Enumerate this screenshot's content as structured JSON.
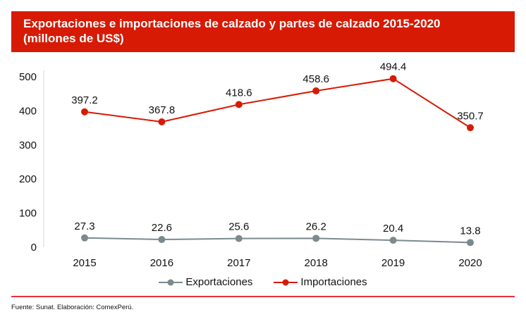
{
  "title_line1": "Exportaciones e importaciones de calzado y partes de calzado 2015-2020",
  "title_line2": "(millones de US$)",
  "source": "Fuente: Sunat. Elaboración: ComexPerú.",
  "chart_data": {
    "type": "line",
    "title": "Exportaciones e importaciones de calzado y partes de calzado 2015-2020 (millones de US$)",
    "categories": [
      "2015",
      "2016",
      "2017",
      "2018",
      "2019",
      "2020"
    ],
    "ylim": [
      0,
      500
    ],
    "yticks": [
      0,
      100,
      200,
      300,
      400,
      500
    ],
    "grid": false,
    "legend": "bottom",
    "series": [
      {
        "name": "Exportaciones",
        "color": "#7a8a8f",
        "values": [
          27.3,
          22.6,
          25.6,
          26.2,
          20.4,
          13.8
        ]
      },
      {
        "name": "Importaciones",
        "color": "#d71a04",
        "values": [
          397.2,
          367.8,
          418.6,
          458.6,
          494.4,
          350.7
        ]
      }
    ]
  }
}
